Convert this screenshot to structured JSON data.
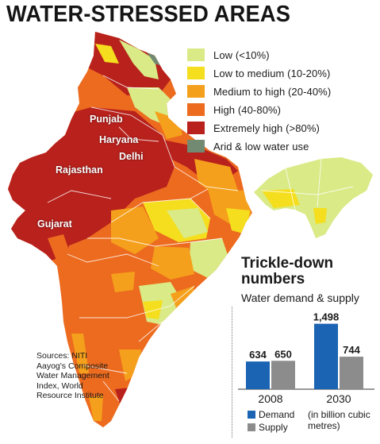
{
  "title": "WATER-STRESSED AREAS",
  "legend": [
    {
      "label": "Low (<10%)",
      "color": "#d9ea86"
    },
    {
      "label": "Low to medium (10-20%)",
      "color": "#f5de1d"
    },
    {
      "label": "Medium to high (20-40%)",
      "color": "#f5a01c"
    },
    {
      "label": "High (40-80%)",
      "color": "#ec6b1f"
    },
    {
      "label": "Extremely high (>80%)",
      "color": "#b8211c"
    },
    {
      "label": "Arid & low water use",
      "color": "#728a72"
    }
  ],
  "state_labels": [
    "Punjab",
    "Haryana",
    "Delhi",
    "Rajasthan",
    "Gujarat"
  ],
  "sources": "Sources: NITI Aayog's Composite Water Management Index, World Resource Institute",
  "inset": {
    "title": "Trickle-down numbers",
    "subtitle": "Water demand & supply",
    "unit_note": "(in billion cubic metres)"
  },
  "chart_data": {
    "type": "bar",
    "categories": [
      "2008",
      "2030"
    ],
    "series": [
      {
        "name": "Demand",
        "values": [
          634,
          1498
        ],
        "color": "#1a64b3"
      },
      {
        "name": "Supply",
        "values": [
          650,
          744
        ],
        "color": "#8c8c8c"
      }
    ],
    "value_labels": [
      [
        "634",
        "650"
      ],
      [
        "1,498",
        "744"
      ]
    ],
    "ylim": [
      0,
      1600
    ]
  }
}
